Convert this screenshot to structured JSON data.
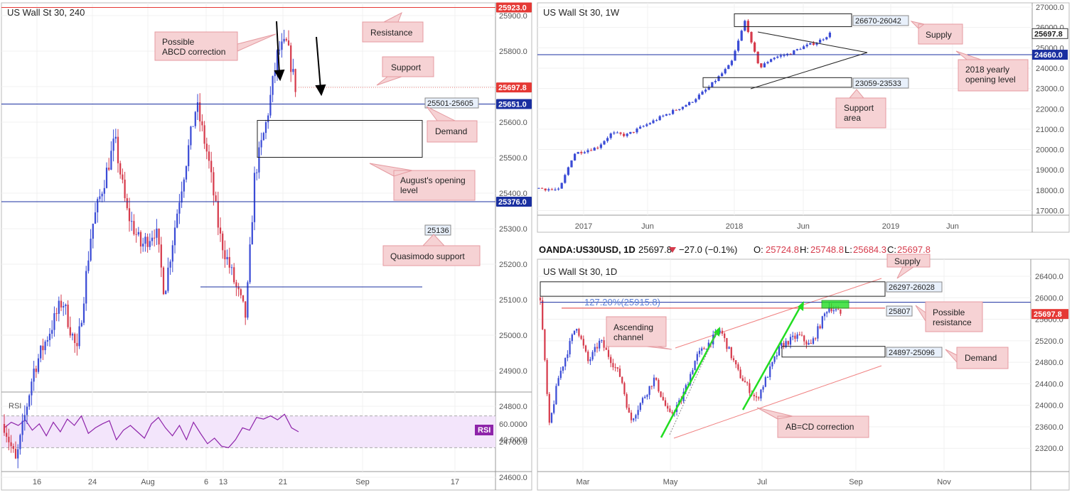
{
  "chart_data": [
    {
      "type": "candlestick",
      "title": "US Wall St 30, 240",
      "price_labels": {
        "resistance": "25923.0",
        "current": "25697.8",
        "support": "25651.0",
        "august": "25376.0"
      },
      "y_ticks": [
        "25900.0",
        "25800.0",
        "25700.0",
        "25600.0",
        "25500.0",
        "25400.0",
        "25300.0",
        "25200.0",
        "25100.0",
        "25000.0",
        "24900.0",
        "24800.0",
        "24700.0",
        "24600.0"
      ],
      "x_ticks": [
        "16",
        "24",
        "Aug",
        "6",
        "13",
        "21",
        "Sep",
        "17"
      ],
      "levels": {
        "resistance": 25923,
        "support": 25651,
        "august_open": 25376,
        "quasimodo": 25136
      },
      "zone": {
        "label": "25501-25605",
        "low": 25501,
        "high": 25605
      },
      "quasimodo_label": "25136",
      "annotations": [
        "Possible\nABCD correction",
        "Resistance",
        "Support",
        "Demand",
        "August's opening\nlevel",
        "Quasimodo support"
      ],
      "rsi": {
        "label": "RSI",
        "ticks": [
          "60.0000",
          "40.0000"
        ],
        "tag": "RSI",
        "levels": [
          70,
          30
        ]
      }
    },
    {
      "type": "candlestick",
      "title": "US Wall St 30, 1W",
      "price_labels": {
        "current": "25697.8",
        "yearly": "24660.0"
      },
      "y_ticks": [
        "27000.0",
        "26000.0",
        "25000.0",
        "24000.0",
        "23000.0",
        "22000.0",
        "21000.0",
        "20000.0",
        "19000.0",
        "18000.0",
        "17000.0"
      ],
      "x_ticks": [
        "2017",
        "Jun",
        "2018",
        "Jun",
        "2019",
        "Jun"
      ],
      "levels": {
        "yearly_open": 24660
      },
      "zones": [
        {
          "label": "26670-26042",
          "low": 26042,
          "high": 26670
        },
        {
          "label": "23059-23533",
          "low": 23059,
          "high": 23533
        }
      ],
      "annotations": [
        "Supply",
        "2018 yearly\nopening level",
        "Support\narea"
      ]
    },
    {
      "type": "candlestick",
      "header": {
        "symbol": "OANDA:US30USD, 1D",
        "close": "25697.8",
        "change": "−27.0 (−0.1%)",
        "o": "25724.8",
        "h": "25748.8",
        "l": "25684.3",
        "c": "25697.8"
      },
      "title": "US Wall St 30, 1D",
      "price_labels": {
        "current": "25697.8"
      },
      "y_ticks": [
        "26400.0",
        "26000.0",
        "25600.0",
        "25200.0",
        "24800.0",
        "24400.0",
        "24000.0",
        "23600.0",
        "23200.0"
      ],
      "x_ticks": [
        "Mar",
        "May",
        "Jul",
        "Sep",
        "Nov"
      ],
      "fib_label": "127.20%(25915.8)",
      "levels": {
        "fib": 25915.8,
        "possible_resistance": 25807
      },
      "zones": [
        {
          "label": "26297-26028",
          "low": 26028,
          "high": 26297
        },
        {
          "label": "24897-25096",
          "low": 24897,
          "high": 25096
        }
      ],
      "resistance_label": "25807",
      "annotations": [
        "Supply",
        "Possible\nresistance",
        "Ascending\nchannel",
        "Demand",
        "AB=CD correction"
      ]
    }
  ],
  "colors": {
    "bull": "#3b4cd6",
    "bear": "#d63b4c",
    "red_level": "#e53935",
    "blue_level": "#1a2fa0",
    "note_fill": "#f6d2d4",
    "note_stroke": "#e59aa0",
    "rsi_line": "#8e24aa",
    "rsi_fill": "#f3e5fb",
    "green": "#22dd22",
    "channel": "#f08080",
    "fib": "#5b7fd6"
  }
}
